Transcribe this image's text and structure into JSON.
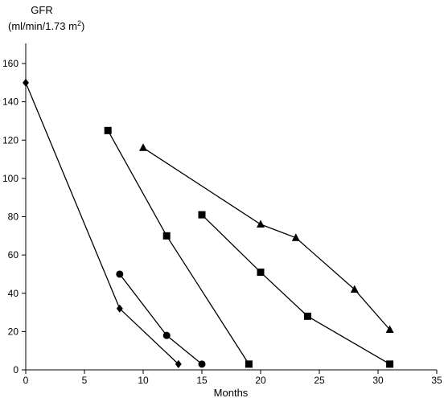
{
  "chart_data": {
    "type": "line",
    "ylabel_line1": "GFR",
    "ylabel_line2_prefix": "(ml/min/1.73 m",
    "ylabel_line2_sup": "2",
    "ylabel_line2_suffix": ")",
    "xlabel": "Months",
    "xlim": [
      0,
      35
    ],
    "ylim": [
      0,
      160
    ],
    "x_ticks": [
      0,
      5,
      10,
      15,
      20,
      25,
      30,
      35
    ],
    "y_ticks": [
      0,
      20,
      40,
      60,
      80,
      100,
      120,
      140,
      160
    ],
    "grid": false,
    "legend": "none",
    "series": [
      {
        "marker": "diamond",
        "x": [
          0,
          8,
          13
        ],
        "y": [
          150,
          32,
          3
        ]
      },
      {
        "marker": "circle",
        "x": [
          8,
          12,
          15
        ],
        "y": [
          50,
          18,
          3
        ]
      },
      {
        "marker": "square",
        "x": [
          7,
          12,
          19
        ],
        "y": [
          125,
          70,
          3
        ]
      },
      {
        "marker": "square",
        "x": [
          15,
          20,
          24,
          31
        ],
        "y": [
          81,
          51,
          28,
          3
        ]
      },
      {
        "marker": "triangle",
        "x": [
          10,
          20,
          23,
          28,
          31
        ],
        "y": [
          116,
          76,
          69,
          42,
          21
        ]
      }
    ]
  }
}
